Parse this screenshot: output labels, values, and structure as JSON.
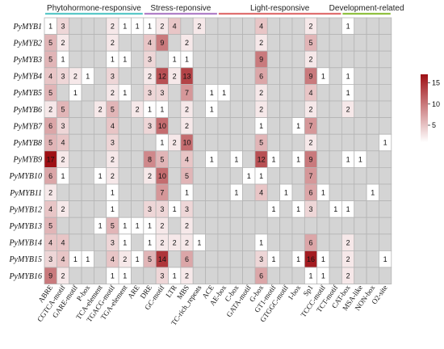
{
  "chart_data": {
    "type": "heatmap",
    "categories_header": [
      {
        "label": "Phytohormone-responsive",
        "start": 0,
        "end": 7,
        "color": "#5ac8c8"
      },
      {
        "label": "Stress-reponsive",
        "start": 8,
        "end": 13,
        "color": "#b080c8"
      },
      {
        "label": "Light-responsive",
        "start": 14,
        "end": 23,
        "color": "#e07070"
      },
      {
        "label": "Development-related",
        "start": 24,
        "end": 27,
        "color": "#90c040"
      }
    ],
    "columns": [
      "ABRE",
      "CGTCA-motif",
      "GARE-motif",
      "P-box",
      "TCA-element",
      "TGACG-motif",
      "TGA-element",
      "ARE",
      "DRE",
      "GC-motif",
      "LTR",
      "MBS",
      "TC-rich_repeats",
      "ACE",
      "AE-box",
      "C-box",
      "GATA-motif",
      "G-box",
      "GT1-motif",
      "GTGGC-motif",
      "I-box",
      "Sp1",
      "TCCC-motif",
      "TCT-motif",
      "CAT-box",
      "MSA-like",
      "NON-box",
      "O2-site"
    ],
    "rows": [
      "PyMYB1",
      "PyMYB2",
      "PyMYB3",
      "PyMYB4",
      "PyMYB5",
      "PyMYB6",
      "PyMYB7",
      "PyMYB8",
      "PyMYB9",
      "PyMYB10",
      "PyMYB11",
      "PyMYB12",
      "PyMYB13",
      "PyMYB14",
      "PyMYB15",
      "PyMYB16"
    ],
    "values": [
      [
        1,
        3,
        0,
        0,
        0,
        2,
        1,
        1,
        1,
        2,
        4,
        0,
        2,
        0,
        0,
        0,
        0,
        4,
        0,
        0,
        0,
        2,
        0,
        0,
        1,
        0,
        0,
        0
      ],
      [
        5,
        2,
        0,
        0,
        0,
        2,
        0,
        0,
        4,
        9,
        0,
        2,
        0,
        0,
        0,
        0,
        0,
        2,
        0,
        0,
        0,
        5,
        0,
        0,
        0,
        0,
        0,
        0
      ],
      [
        5,
        1,
        0,
        0,
        0,
        1,
        1,
        0,
        3,
        0,
        1,
        1,
        0,
        0,
        0,
        0,
        0,
        9,
        0,
        0,
        0,
        2,
        0,
        0,
        0,
        0,
        0,
        0
      ],
      [
        4,
        3,
        2,
        1,
        0,
        3,
        0,
        0,
        2,
        12,
        2,
        13,
        0,
        0,
        0,
        0,
        0,
        6,
        0,
        0,
        0,
        9,
        1,
        0,
        1,
        0,
        0,
        0
      ],
      [
        5,
        0,
        1,
        0,
        0,
        2,
        1,
        0,
        3,
        3,
        0,
        7,
        0,
        1,
        1,
        0,
        0,
        2,
        0,
        0,
        0,
        4,
        0,
        0,
        1,
        0,
        0,
        0
      ],
      [
        2,
        5,
        0,
        0,
        2,
        5,
        0,
        2,
        1,
        1,
        0,
        2,
        0,
        1,
        0,
        0,
        0,
        2,
        0,
        0,
        0,
        2,
        0,
        0,
        2,
        0,
        0,
        0
      ],
      [
        6,
        3,
        0,
        0,
        0,
        4,
        0,
        0,
        3,
        10,
        0,
        2,
        0,
        0,
        0,
        0,
        0,
        1,
        0,
        0,
        1,
        7,
        0,
        0,
        0,
        0,
        0,
        0
      ],
      [
        5,
        4,
        0,
        0,
        0,
        3,
        0,
        0,
        0,
        1,
        2,
        10,
        0,
        0,
        0,
        0,
        0,
        5,
        0,
        0,
        0,
        2,
        0,
        0,
        0,
        0,
        0,
        1
      ],
      [
        17,
        2,
        0,
        0,
        0,
        2,
        0,
        0,
        8,
        5,
        0,
        4,
        0,
        1,
        0,
        1,
        0,
        12,
        1,
        0,
        1,
        9,
        0,
        0,
        1,
        1,
        0,
        0
      ],
      [
        6,
        1,
        0,
        0,
        1,
        2,
        0,
        0,
        2,
        10,
        0,
        5,
        0,
        0,
        0,
        0,
        1,
        1,
        0,
        0,
        0,
        7,
        0,
        0,
        0,
        0,
        0,
        0
      ],
      [
        2,
        0,
        0,
        0,
        0,
        1,
        0,
        0,
        0,
        7,
        0,
        1,
        0,
        0,
        0,
        1,
        0,
        4,
        0,
        1,
        0,
        6,
        1,
        0,
        0,
        0,
        1,
        0
      ],
      [
        4,
        2,
        0,
        0,
        0,
        1,
        0,
        0,
        3,
        3,
        1,
        3,
        0,
        0,
        0,
        0,
        0,
        0,
        1,
        0,
        1,
        3,
        0,
        1,
        1,
        0,
        0,
        0
      ],
      [
        5,
        0,
        0,
        0,
        1,
        5,
        1,
        1,
        1,
        2,
        0,
        2,
        0,
        0,
        0,
        0,
        0,
        0,
        0,
        0,
        0,
        0,
        0,
        0,
        0,
        0,
        0,
        0
      ],
      [
        4,
        4,
        0,
        0,
        0,
        3,
        1,
        0,
        1,
        2,
        2,
        2,
        1,
        0,
        0,
        0,
        0,
        1,
        0,
        0,
        0,
        6,
        0,
        0,
        2,
        0,
        0,
        0
      ],
      [
        3,
        4,
        1,
        1,
        0,
        4,
        2,
        1,
        5,
        14,
        0,
        6,
        0,
        0,
        0,
        0,
        0,
        3,
        1,
        0,
        1,
        16,
        1,
        0,
        2,
        0,
        0,
        1
      ],
      [
        9,
        2,
        0,
        0,
        0,
        1,
        1,
        0,
        0,
        3,
        1,
        2,
        0,
        0,
        0,
        0,
        0,
        6,
        0,
        0,
        0,
        1,
        1,
        0,
        2,
        0,
        0,
        0
      ]
    ],
    "empty_color": "#d4d4d4",
    "color_low": "#ffffff",
    "color_high": "#9e0f14",
    "vmin": 1,
    "vmax": 17,
    "colorbar_ticks": [
      5,
      10,
      15
    ],
    "legend_placement": "right"
  }
}
